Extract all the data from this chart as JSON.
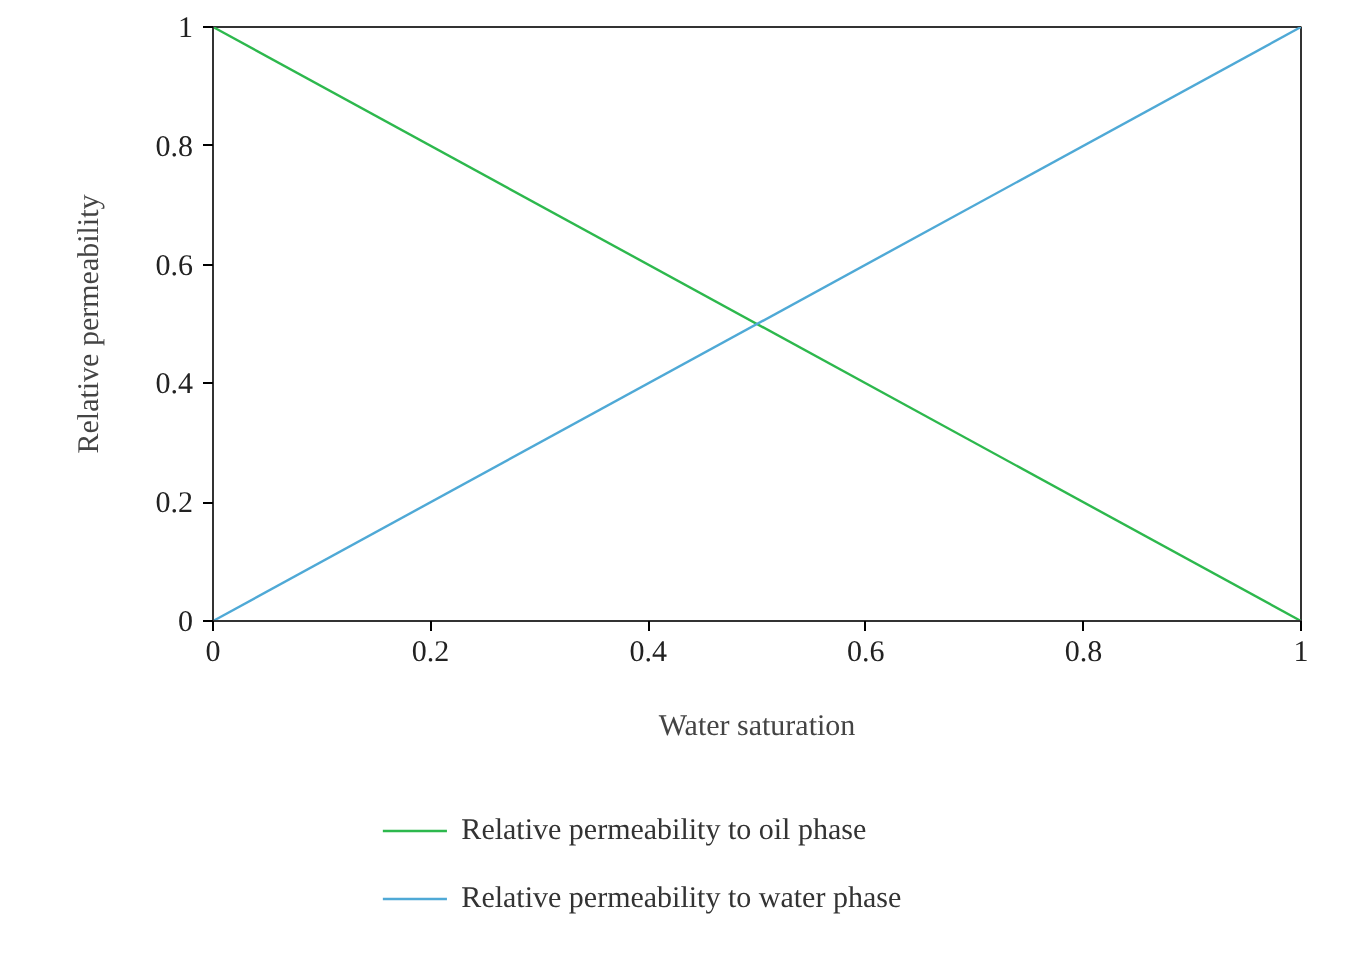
{
  "chart_data": {
    "type": "line",
    "xlabel": "Water saturation",
    "ylabel": "Relative permeability",
    "xlim": [
      0,
      1
    ],
    "ylim": [
      0,
      1
    ],
    "xticks": [
      0,
      0.2,
      0.4,
      0.6,
      0.8,
      1
    ],
    "yticks": [
      0,
      0.2,
      0.4,
      0.6,
      0.8,
      1
    ],
    "x": [
      0,
      1
    ],
    "series": [
      {
        "name": "Relative permeability to oil phase",
        "color": "#2db84d",
        "values": [
          1,
          0
        ]
      },
      {
        "name": "Relative permeability to water phase",
        "color": "#4fa9d6",
        "values": [
          0,
          1
        ]
      }
    ],
    "grid": false,
    "legend": "bottom",
    "marker": "none",
    "line_style": "solid"
  }
}
